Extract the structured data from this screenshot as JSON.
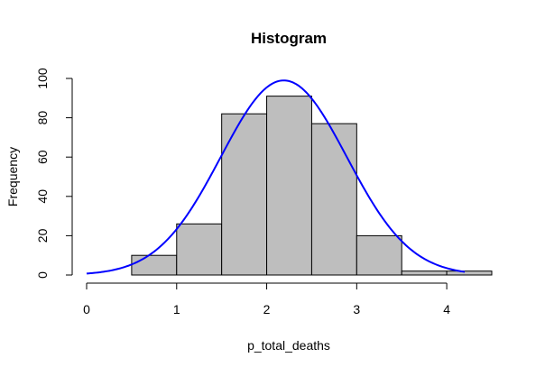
{
  "chart_data": {
    "type": "bar",
    "title": "Histogram",
    "xlabel": "p_total_deaths",
    "ylabel": "Frequency",
    "bins": [
      {
        "from": 0.5,
        "to": 1.0,
        "count": 10
      },
      {
        "from": 1.0,
        "to": 1.5,
        "count": 26
      },
      {
        "from": 1.5,
        "to": 2.0,
        "count": 82
      },
      {
        "from": 2.0,
        "to": 2.5,
        "count": 91
      },
      {
        "from": 2.5,
        "to": 3.0,
        "count": 77
      },
      {
        "from": 3.0,
        "to": 3.5,
        "count": 20
      },
      {
        "from": 3.5,
        "to": 4.0,
        "count": 2
      },
      {
        "from": 4.0,
        "to": 4.5,
        "count": 2
      }
    ],
    "bar_fill": "#bebebe",
    "bar_stroke": "#000000",
    "normal_curve": {
      "color": "#0000ff",
      "mean": 2.19,
      "sd": 0.7,
      "peak_frequency": 99,
      "x_range": [
        0,
        4.2
      ]
    },
    "x_ticks": [
      "0",
      "1",
      "2",
      "3",
      "4"
    ],
    "y_ticks": [
      "0",
      "20",
      "40",
      "60",
      "80",
      "100"
    ],
    "xlim": [
      0,
      4.5
    ],
    "ylim": [
      0,
      100
    ],
    "grid": false,
    "legend": "none"
  }
}
